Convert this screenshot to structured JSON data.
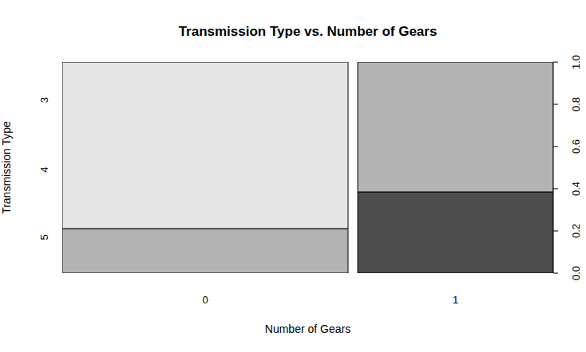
{
  "chart_data": {
    "type": "spineplot",
    "title": "Transmission Type vs. Number of Gears",
    "x_label": "Number of Gears",
    "y_label": "Transmission Type",
    "categories": [
      "0",
      "1"
    ],
    "widths": [
      19,
      13
    ],
    "stacked": true,
    "series": [
      {
        "name": "5",
        "color": "#4d4d4d",
        "values": [
          0,
          0.385
        ]
      },
      {
        "name": "4",
        "color": "#b3b3b3",
        "values": [
          0.211,
          0.615
        ]
      },
      {
        "name": "3",
        "color": "#e6e6e6",
        "values": [
          0.789,
          0
        ]
      }
    ],
    "ylim": [
      0,
      1
    ],
    "yticks": [
      {
        "value": 0.17,
        "label": "5"
      },
      {
        "value": 0.49,
        "label": "4"
      },
      {
        "value": 0.82,
        "label": "3"
      }
    ],
    "y2lim": [
      0,
      1
    ],
    "y2ticks": [
      {
        "value": 0,
        "label": "0.0"
      },
      {
        "value": 0.2,
        "label": "0.2"
      },
      {
        "value": 0.4,
        "label": "0.4"
      },
      {
        "value": 0.6,
        "label": "0.6"
      },
      {
        "value": 0.8,
        "label": "0.8"
      },
      {
        "value": 1,
        "label": "1.0"
      }
    ]
  }
}
